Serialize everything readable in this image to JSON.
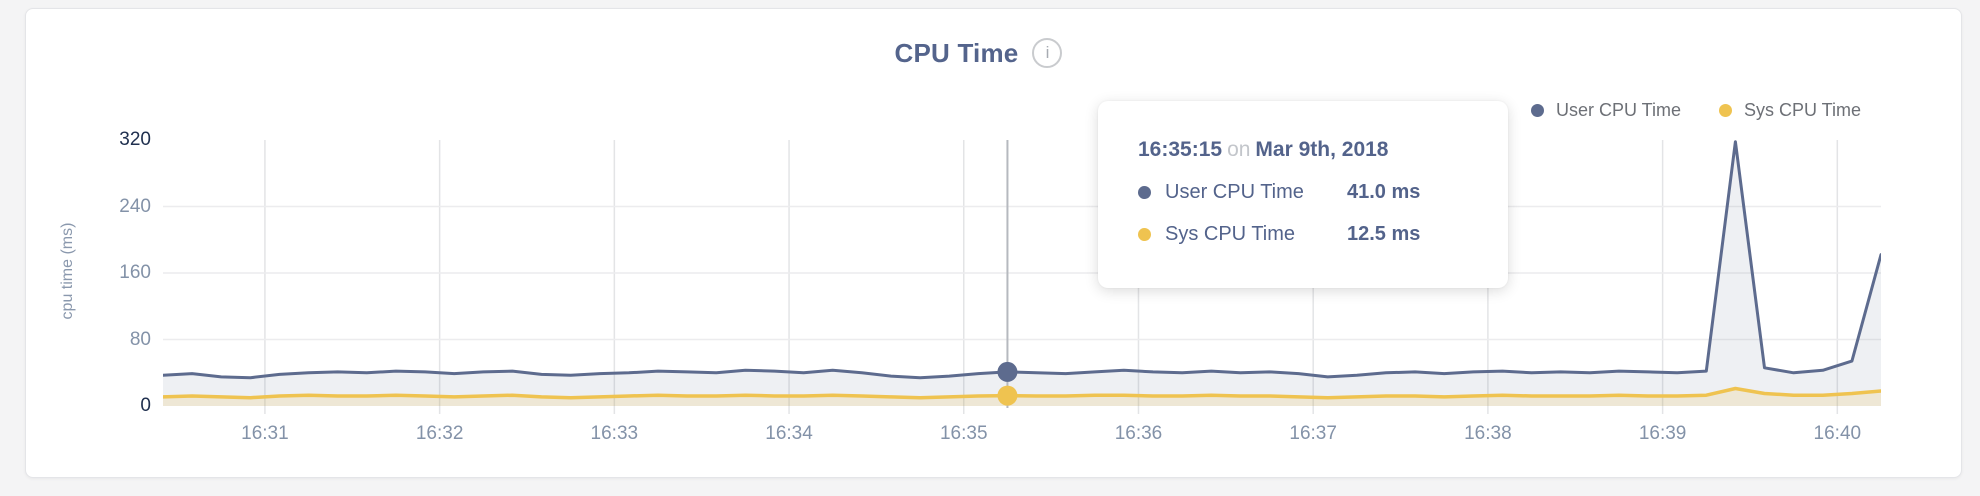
{
  "header": {
    "title": "CPU Time",
    "info_glyph": "i"
  },
  "legend": {
    "items": [
      {
        "label": "User CPU Time",
        "color": "#5d6b8e"
      },
      {
        "label": "Sys CPU Time",
        "color": "#efc350"
      }
    ]
  },
  "tooltip": {
    "time": "16:35:15",
    "conjunction": "on",
    "date": "Mar 9th, 2018",
    "rows": [
      {
        "label": "User CPU Time",
        "value": "41.0 ms",
        "color": "#5d6b8e"
      },
      {
        "label": "Sys CPU Time",
        "value": "12.5 ms",
        "color": "#efc350"
      }
    ]
  },
  "chart_data": {
    "type": "area",
    "title": "CPU Time",
    "xlabel": "",
    "ylabel": "cpu time (ms)",
    "ylim": [
      0,
      320
    ],
    "y_ticks": [
      0,
      80,
      160,
      240,
      320
    ],
    "x_ticks": [
      "16:31",
      "16:32",
      "16:33",
      "16:34",
      "16:35",
      "16:36",
      "16:37",
      "16:38",
      "16:39",
      "16:40"
    ],
    "x_start": "16:30:25",
    "x_interval_seconds": 10,
    "grid": true,
    "legend_position": "top-right",
    "hover_index": 29,
    "hover_time": "16:35:15",
    "series": [
      {
        "name": "User CPU Time",
        "color": "#5d6b8e",
        "fill": "rgba(93,107,142,0.10)",
        "values": [
          37,
          39,
          35,
          34,
          38,
          40,
          41,
          40,
          42,
          41,
          39,
          41,
          42,
          38,
          37,
          39,
          40,
          42,
          41,
          40,
          43,
          42,
          40,
          43,
          40,
          36,
          34,
          36,
          39,
          41,
          40,
          39,
          41,
          43,
          41,
          40,
          42,
          40,
          41,
          39,
          35,
          37,
          40,
          41,
          39,
          41,
          42,
          40,
          41,
          40,
          42,
          41,
          40,
          42,
          318,
          46,
          40,
          43,
          54,
          182
        ]
      },
      {
        "name": "Sys CPU Time",
        "color": "#efc350",
        "fill": "rgba(239,195,80,0.18)",
        "values": [
          11,
          12,
          11,
          10,
          12,
          13,
          12,
          12,
          13,
          12,
          11,
          12,
          13,
          11,
          10,
          11,
          12,
          13,
          12,
          12,
          13,
          12,
          12,
          13,
          12,
          11,
          10,
          11,
          12,
          12.5,
          12,
          12,
          13,
          13,
          12,
          12,
          13,
          12,
          12,
          11,
          10,
          11,
          12,
          12,
          11,
          12,
          13,
          12,
          12,
          12,
          13,
          12,
          12,
          13,
          21,
          15,
          13,
          13,
          15,
          18
        ]
      }
    ],
    "colors": {
      "vertical_grid": "#e3e4e6",
      "horizontal_grid": "#ececee",
      "cursor_line": "#b6b9bf"
    }
  }
}
